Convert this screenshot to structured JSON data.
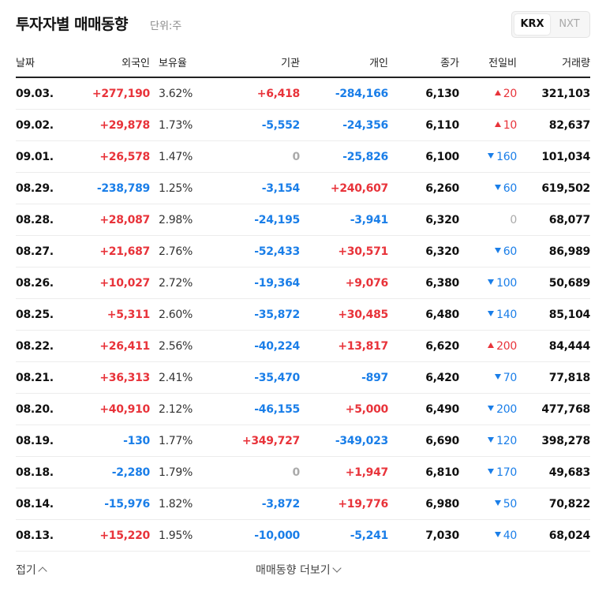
{
  "header": {
    "title": "투자자별 매매동향",
    "unit": "단위:주",
    "tabs": [
      "KRX",
      "NXT"
    ]
  },
  "table": {
    "columns": [
      "날짜",
      "외국인",
      "보유율",
      "기관",
      "개인",
      "종가",
      "전일비",
      "거래량"
    ],
    "rows": [
      [
        "09.03.",
        "+277,190",
        "3.62%",
        "+6,418",
        "-284,166",
        "6,130",
        {
          "direction": "up",
          "value": "20"
        },
        "321,103"
      ],
      [
        "09.02.",
        "+29,878",
        "1.73%",
        "-5,552",
        "-24,356",
        "6,110",
        {
          "direction": "up",
          "value": "10"
        },
        "82,637"
      ],
      [
        "09.01.",
        "+26,578",
        "1.47%",
        "0",
        "-25,826",
        "6,100",
        {
          "direction": "down",
          "value": "160"
        },
        "101,034"
      ],
      [
        "08.29.",
        "-238,789",
        "1.25%",
        "-3,154",
        "+240,607",
        "6,260",
        {
          "direction": "down",
          "value": "60"
        },
        "619,502"
      ],
      [
        "08.28.",
        "+28,087",
        "2.98%",
        "-24,195",
        "-3,941",
        "6,320",
        {
          "direction": null,
          "value": "0"
        },
        "68,077"
      ],
      [
        "08.27.",
        "+21,687",
        "2.76%",
        "-52,433",
        "+30,571",
        "6,320",
        {
          "direction": "down",
          "value": "60"
        },
        "86,989"
      ],
      [
        "08.26.",
        "+10,027",
        "2.72%",
        "-19,364",
        "+9,076",
        "6,380",
        {
          "direction": "down",
          "value": "100"
        },
        "50,689"
      ],
      [
        "08.25.",
        "+5,311",
        "2.60%",
        "-35,872",
        "+30,485",
        "6,480",
        {
          "direction": "down",
          "value": "140"
        },
        "85,104"
      ],
      [
        "08.22.",
        "+26,411",
        "2.56%",
        "-40,224",
        "+13,817",
        "6,620",
        {
          "direction": "up",
          "value": "200"
        },
        "84,444"
      ],
      [
        "08.21.",
        "+36,313",
        "2.41%",
        "-35,470",
        "-897",
        "6,420",
        {
          "direction": "down",
          "value": "70"
        },
        "77,818"
      ],
      [
        "08.20.",
        "+40,910",
        "2.12%",
        "-46,155",
        "+5,000",
        "6,490",
        {
          "direction": "down",
          "value": "200"
        },
        "477,768"
      ],
      [
        "08.19.",
        "-130",
        "1.77%",
        "+349,727",
        "-349,023",
        "6,690",
        {
          "direction": "down",
          "value": "120"
        },
        "398,278"
      ],
      [
        "08.18.",
        "-2,280",
        "1.79%",
        "0",
        "+1,947",
        "6,810",
        {
          "direction": "down",
          "value": "170"
        },
        "49,683"
      ],
      [
        "08.14.",
        "-15,976",
        "1.82%",
        "-3,872",
        "+19,776",
        "6,980",
        {
          "direction": "down",
          "value": "50"
        },
        "70,822"
      ],
      [
        "08.13.",
        "+15,220",
        "1.95%",
        "-10,000",
        "-5,241",
        "7,030",
        {
          "direction": "down",
          "value": "40"
        },
        "68,024"
      ]
    ]
  },
  "footer": {
    "collapse": "접기",
    "more": "매매동향 더보기"
  }
}
